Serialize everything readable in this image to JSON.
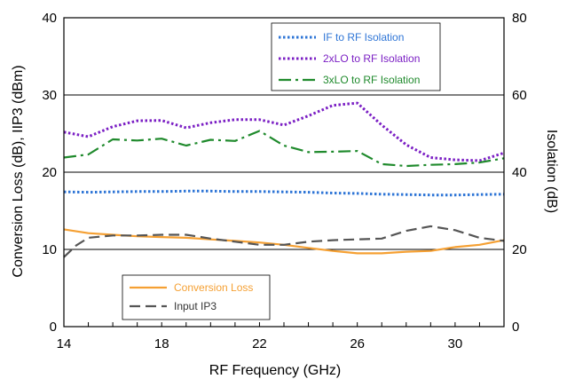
{
  "chart_data": {
    "type": "line",
    "xlabel": "RF Frequency (GHz)",
    "ylabel_left": "Conversion Loss (dB), IIP3 (dBm)",
    "ylabel_right": "Isolation (dB)",
    "xlim": [
      14,
      32
    ],
    "ylim_left": [
      0,
      40
    ],
    "ylim_right": [
      0,
      80
    ],
    "x_ticks": [
      "14",
      "18",
      "22",
      "26",
      "30"
    ],
    "y_left_ticks": [
      "0",
      "10",
      "20",
      "30",
      "40"
    ],
    "y_right_ticks": [
      "0",
      "20",
      "40",
      "60",
      "80"
    ],
    "grid": "horizontal",
    "series": [
      {
        "name": "IF to RF Isolation",
        "axis": "right",
        "color": "#2e75d6",
        "style": "dotted",
        "x": [
          14,
          15,
          16,
          17,
          18,
          19,
          20,
          21,
          22,
          23,
          24,
          25,
          26,
          27,
          28,
          29,
          30,
          31,
          32
        ],
        "y": [
          34.9,
          34.8,
          34.9,
          35.0,
          35.0,
          35.1,
          35.1,
          35.0,
          35.0,
          34.9,
          34.8,
          34.6,
          34.5,
          34.3,
          34.2,
          34.1,
          34.1,
          34.2,
          34.3
        ]
      },
      {
        "name": "2xLO to RF Isolation",
        "axis": "right",
        "color": "#7b1fc4",
        "style": "dotted",
        "x": [
          14,
          15,
          16,
          17,
          18,
          19,
          20,
          21,
          22,
          23,
          24,
          25,
          26,
          27,
          28,
          29,
          30,
          31,
          32
        ],
        "y": [
          50.4,
          49.2,
          51.8,
          53.3,
          53.4,
          51.5,
          52.8,
          53.6,
          53.6,
          52.2,
          54.6,
          57.3,
          57.9,
          52.2,
          47.1,
          43.8,
          43.2,
          43.0,
          45.0
        ]
      },
      {
        "name": "3xLO to RF Isolation",
        "axis": "right",
        "color": "#1f8a2c",
        "style": "dashdot",
        "x": [
          14,
          15,
          16,
          17,
          18,
          19,
          20,
          21,
          22,
          23,
          24,
          25,
          26,
          27,
          28,
          29,
          30,
          31,
          32
        ],
        "y": [
          43.8,
          44.6,
          48.5,
          48.2,
          48.7,
          46.9,
          48.4,
          48.1,
          50.7,
          46.9,
          45.2,
          45.3,
          45.5,
          42.1,
          41.6,
          41.9,
          42.1,
          42.5,
          43.6
        ]
      },
      {
        "name": "Conversion Loss",
        "axis": "left",
        "color": "#f5a033",
        "style": "solid",
        "x": [
          14,
          15,
          16,
          17,
          18,
          19,
          20,
          21,
          22,
          23,
          24,
          25,
          26,
          27,
          28,
          29,
          30,
          31,
          32
        ],
        "y": [
          12.6,
          12.1,
          11.9,
          11.7,
          11.6,
          11.5,
          11.3,
          11.1,
          10.9,
          10.6,
          10.2,
          9.8,
          9.5,
          9.5,
          9.7,
          9.8,
          10.3,
          10.6,
          11.2
        ]
      },
      {
        "name": "Input IP3",
        "axis": "left",
        "color": "#555555",
        "style": "dashed",
        "x": [
          14,
          14.5,
          15,
          16,
          17,
          18,
          19,
          20,
          21,
          22,
          23,
          24,
          25,
          26,
          27,
          28,
          29,
          30,
          31,
          32
        ],
        "y": [
          9.0,
          10.5,
          11.5,
          11.8,
          11.8,
          11.9,
          11.9,
          11.4,
          11.0,
          10.6,
          10.6,
          11.0,
          11.2,
          11.3,
          11.4,
          12.4,
          13.0,
          12.5,
          11.5,
          11.1
        ]
      }
    ]
  }
}
